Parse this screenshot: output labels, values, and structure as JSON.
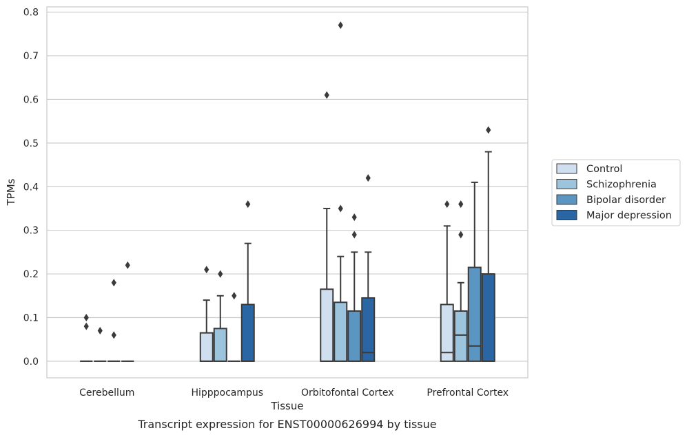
{
  "caption": "Transcript expression for ENST00000626994 by tissue",
  "chart_data": {
    "type": "box",
    "xlabel": "Tissue",
    "ylabel": "TPMs",
    "ylim": [
      -0.038,
      0.812
    ],
    "yticks": [
      0.0,
      0.1,
      0.2,
      0.3,
      0.4,
      0.5,
      0.6,
      0.7,
      0.8
    ],
    "ytick_labels": [
      "0.0",
      "0.1",
      "0.2",
      "0.3",
      "0.4",
      "0.5",
      "0.6",
      "0.7",
      "0.8"
    ],
    "grid": "horizontal",
    "legend_position": "right",
    "categories": [
      "Cerebellum",
      "Hipppocampus",
      "Orbitofontal Cortex",
      "Prefrontal Cortex"
    ],
    "series": [
      {
        "name": "Control",
        "color": "#d0dff0",
        "boxes": [
          {
            "q1": 0.0,
            "median": 0.0,
            "q3": 0.0,
            "whisker_low": 0.0,
            "whisker_high": 0.0,
            "outliers": [
              0.1,
              0.08
            ]
          },
          {
            "q1": 0.0,
            "median": 0.0,
            "q3": 0.065,
            "whisker_low": 0.0,
            "whisker_high": 0.14,
            "outliers": [
              0.21
            ]
          },
          {
            "q1": 0.0,
            "median": 0.0,
            "q3": 0.165,
            "whisker_low": 0.0,
            "whisker_high": 0.35,
            "outliers": [
              0.61
            ]
          },
          {
            "q1": 0.0,
            "median": 0.02,
            "q3": 0.13,
            "whisker_low": 0.0,
            "whisker_high": 0.31,
            "outliers": [
              0.36
            ]
          }
        ]
      },
      {
        "name": "Schizophrenia",
        "color": "#9dc4dd",
        "boxes": [
          {
            "q1": 0.0,
            "median": 0.0,
            "q3": 0.0,
            "whisker_low": 0.0,
            "whisker_high": 0.0,
            "outliers": [
              0.07
            ]
          },
          {
            "q1": 0.0,
            "median": 0.0,
            "q3": 0.075,
            "whisker_low": 0.0,
            "whisker_high": 0.15,
            "outliers": [
              0.2
            ]
          },
          {
            "q1": 0.0,
            "median": 0.0,
            "q3": 0.135,
            "whisker_low": 0.0,
            "whisker_high": 0.24,
            "outliers": [
              0.77,
              0.35
            ]
          },
          {
            "q1": 0.0,
            "median": 0.06,
            "q3": 0.115,
            "whisker_low": 0.0,
            "whisker_high": 0.18,
            "outliers": [
              0.36,
              0.29
            ]
          }
        ]
      },
      {
        "name": "Bipolar disorder",
        "color": "#5a96c1",
        "boxes": [
          {
            "q1": 0.0,
            "median": 0.0,
            "q3": 0.0,
            "whisker_low": 0.0,
            "whisker_high": 0.0,
            "outliers": [
              0.18,
              0.06
            ]
          },
          {
            "q1": 0.0,
            "median": 0.0,
            "q3": 0.0,
            "whisker_low": 0.0,
            "whisker_high": 0.0,
            "outliers": [
              0.15
            ]
          },
          {
            "q1": 0.0,
            "median": 0.0,
            "q3": 0.115,
            "whisker_low": 0.0,
            "whisker_high": 0.25,
            "outliers": [
              0.33,
              0.29
            ]
          },
          {
            "q1": 0.0,
            "median": 0.035,
            "q3": 0.215,
            "whisker_low": 0.0,
            "whisker_high": 0.41,
            "outliers": []
          }
        ]
      },
      {
        "name": "Major depression",
        "color": "#2a66a4",
        "boxes": [
          {
            "q1": 0.0,
            "median": 0.0,
            "q3": 0.0,
            "whisker_low": 0.0,
            "whisker_high": 0.0,
            "outliers": [
              0.22
            ]
          },
          {
            "q1": 0.0,
            "median": 0.0,
            "q3": 0.13,
            "whisker_low": 0.0,
            "whisker_high": 0.27,
            "outliers": [
              0.36
            ]
          },
          {
            "q1": 0.0,
            "median": 0.02,
            "q3": 0.145,
            "whisker_low": 0.0,
            "whisker_high": 0.25,
            "outliers": [
              0.42
            ]
          },
          {
            "q1": 0.0,
            "median": 0.0,
            "q3": 0.2,
            "whisker_low": 0.0,
            "whisker_high": 0.48,
            "outliers": [
              0.53
            ]
          }
        ]
      }
    ]
  }
}
